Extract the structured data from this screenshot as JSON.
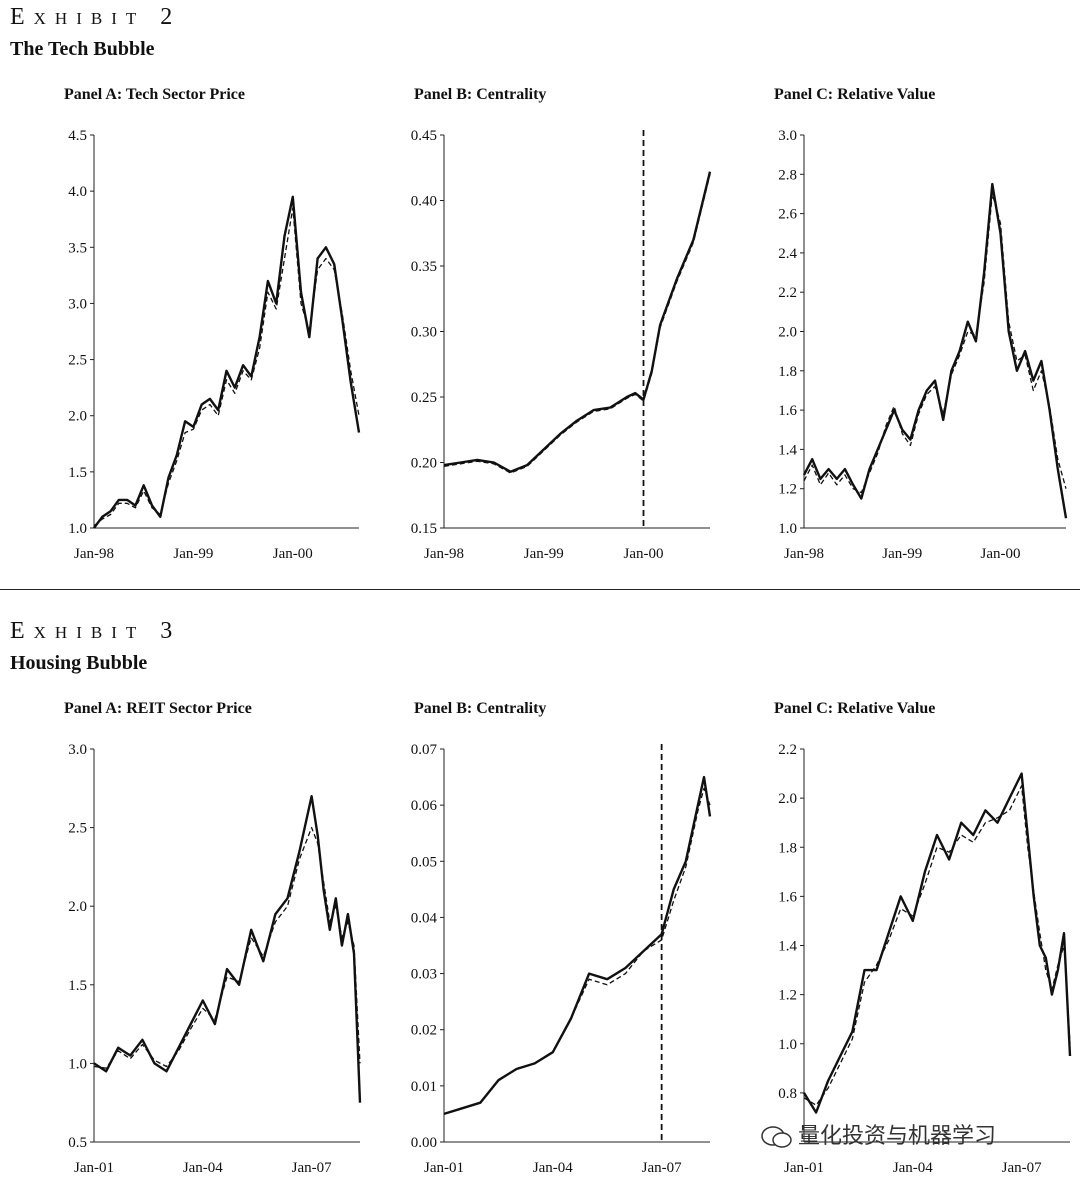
{
  "exhibits": [
    {
      "label": "Exhibit 2",
      "title": "The Tech Bubble"
    },
    {
      "label": "Exhibit 3",
      "title": "Housing Bubble"
    }
  ],
  "watermark": "量化投资与机器学习",
  "chart_data": [
    {
      "type": "line",
      "title": "Panel A: Tech Sector Price",
      "ylim": [
        1.0,
        4.5
      ],
      "yticks": [
        "1.0",
        "1.5",
        "2.0",
        "2.5",
        "3.0",
        "3.5",
        "4.0",
        "4.5"
      ],
      "xlim": [
        0,
        32
      ],
      "xticks": [
        {
          "x": 0,
          "label": "Jan-98"
        },
        {
          "x": 12,
          "label": "Jan-99"
        },
        {
          "x": 24,
          "label": "Jan-00"
        }
      ],
      "series": [
        {
          "style": "solid",
          "x": [
            0,
            1,
            2,
            3,
            4,
            5,
            6,
            7,
            8,
            9,
            10,
            11,
            12,
            13,
            14,
            15,
            16,
            17,
            18,
            19,
            20,
            21,
            22,
            23,
            24,
            25,
            26,
            27,
            28,
            29,
            30,
            31,
            32
          ],
          "values": [
            1.0,
            1.1,
            1.15,
            1.25,
            1.25,
            1.2,
            1.38,
            1.2,
            1.1,
            1.45,
            1.65,
            1.95,
            1.9,
            2.1,
            2.15,
            2.05,
            2.4,
            2.25,
            2.45,
            2.35,
            2.7,
            3.2,
            3.0,
            3.6,
            3.95,
            3.1,
            2.7,
            3.4,
            3.5,
            3.35,
            2.85,
            2.3,
            1.85
          ]
        },
        {
          "style": "dashed",
          "x": [
            0,
            1,
            2,
            3,
            4,
            5,
            6,
            7,
            8,
            9,
            10,
            11,
            12,
            13,
            14,
            15,
            16,
            17,
            18,
            19,
            20,
            21,
            22,
            23,
            24,
            25,
            26,
            27,
            28,
            29,
            30,
            31,
            32
          ],
          "values": [
            1.02,
            1.08,
            1.12,
            1.22,
            1.22,
            1.18,
            1.33,
            1.18,
            1.12,
            1.4,
            1.6,
            1.85,
            1.88,
            2.05,
            2.1,
            2.0,
            2.32,
            2.2,
            2.4,
            2.32,
            2.6,
            3.1,
            2.95,
            3.4,
            3.85,
            3.0,
            2.75,
            3.3,
            3.4,
            3.3,
            2.9,
            2.4,
            2.0
          ]
        }
      ]
    },
    {
      "type": "line",
      "title": "Panel B: Centrality",
      "ylim": [
        0.15,
        0.45
      ],
      "yticks": [
        "0.15",
        "0.20",
        "0.25",
        "0.30",
        "0.35",
        "0.40",
        "0.45"
      ],
      "xlim": [
        0,
        32
      ],
      "xticks": [
        {
          "x": 0,
          "label": "Jan-98"
        },
        {
          "x": 12,
          "label": "Jan-99"
        },
        {
          "x": 24,
          "label": "Jan-00"
        }
      ],
      "vline": 24,
      "series": [
        {
          "style": "solid",
          "x": [
            0,
            2,
            4,
            6,
            8,
            10,
            12,
            14,
            16,
            18,
            20,
            22,
            23,
            24,
            25,
            26,
            28,
            30,
            32
          ],
          "values": [
            0.198,
            0.2,
            0.202,
            0.2,
            0.193,
            0.198,
            0.21,
            0.222,
            0.232,
            0.24,
            0.242,
            0.25,
            0.253,
            0.248,
            0.27,
            0.305,
            0.34,
            0.37,
            0.422
          ]
        },
        {
          "style": "dashed",
          "x": [
            0,
            2,
            4,
            6,
            8,
            10,
            12,
            14,
            16,
            18,
            20,
            22,
            23,
            24,
            25,
            26,
            28,
            30,
            32
          ],
          "values": [
            0.197,
            0.199,
            0.201,
            0.199,
            0.192,
            0.197,
            0.209,
            0.221,
            0.231,
            0.239,
            0.241,
            0.249,
            0.252,
            0.247,
            0.268,
            0.303,
            0.338,
            0.368,
            0.42
          ]
        }
      ]
    },
    {
      "type": "line",
      "title": "Panel C: Relative Value",
      "ylim": [
        1.0,
        3.0
      ],
      "yticks": [
        "1.0",
        "1.2",
        "1.4",
        "1.6",
        "1.8",
        "2.0",
        "2.2",
        "2.4",
        "2.6",
        "2.8",
        "3.0"
      ],
      "xlim": [
        0,
        32
      ],
      "xticks": [
        {
          "x": 0,
          "label": "Jan-98"
        },
        {
          "x": 12,
          "label": "Jan-99"
        },
        {
          "x": 24,
          "label": "Jan-00"
        }
      ],
      "series": [
        {
          "style": "solid",
          "x": [
            0,
            1,
            2,
            3,
            4,
            5,
            6,
            7,
            8,
            9,
            10,
            11,
            12,
            13,
            14,
            15,
            16,
            17,
            18,
            19,
            20,
            21,
            22,
            23,
            24,
            25,
            26,
            27,
            28,
            29,
            30,
            31,
            32
          ],
          "values": [
            1.27,
            1.35,
            1.25,
            1.3,
            1.25,
            1.3,
            1.22,
            1.15,
            1.3,
            1.4,
            1.5,
            1.6,
            1.5,
            1.45,
            1.6,
            1.7,
            1.75,
            1.55,
            1.8,
            1.9,
            2.05,
            1.95,
            2.3,
            2.75,
            2.5,
            2.0,
            1.8,
            1.9,
            1.75,
            1.85,
            1.6,
            1.3,
            1.05
          ]
        },
        {
          "style": "dashed",
          "x": [
            0,
            1,
            2,
            3,
            4,
            5,
            6,
            7,
            8,
            9,
            10,
            11,
            12,
            13,
            14,
            15,
            16,
            17,
            18,
            19,
            20,
            21,
            22,
            23,
            24,
            25,
            26,
            27,
            28,
            29,
            30,
            31,
            32
          ],
          "values": [
            1.24,
            1.32,
            1.22,
            1.28,
            1.22,
            1.27,
            1.2,
            1.18,
            1.28,
            1.38,
            1.52,
            1.62,
            1.48,
            1.42,
            1.58,
            1.68,
            1.72,
            1.58,
            1.78,
            1.88,
            2.0,
            1.98,
            2.25,
            2.7,
            2.55,
            2.05,
            1.85,
            1.88,
            1.7,
            1.8,
            1.62,
            1.35,
            1.2
          ]
        }
      ]
    },
    {
      "type": "line",
      "title": "Panel A: REIT Sector Price",
      "ylim": [
        0.5,
        3.0
      ],
      "yticks": [
        "0.5",
        "1.0",
        "1.5",
        "2.0",
        "2.5",
        "3.0"
      ],
      "xlim": [
        0,
        88
      ],
      "xticks": [
        {
          "x": 0,
          "label": "Jan-01"
        },
        {
          "x": 36,
          "label": "Jan-04"
        },
        {
          "x": 72,
          "label": "Jan-07"
        }
      ],
      "series": [
        {
          "style": "solid",
          "x": [
            0,
            4,
            8,
            12,
            16,
            20,
            24,
            28,
            32,
            36,
            40,
            44,
            48,
            52,
            56,
            60,
            64,
            68,
            72,
            74,
            76,
            78,
            80,
            82,
            84,
            86,
            88
          ],
          "values": [
            1.0,
            0.95,
            1.1,
            1.05,
            1.15,
            1.0,
            0.95,
            1.1,
            1.25,
            1.4,
            1.25,
            1.6,
            1.5,
            1.85,
            1.65,
            1.95,
            2.05,
            2.35,
            2.7,
            2.45,
            2.1,
            1.85,
            2.05,
            1.75,
            1.95,
            1.7,
            0.75
          ]
        },
        {
          "style": "dashed",
          "x": [
            0,
            4,
            8,
            12,
            16,
            20,
            24,
            28,
            32,
            36,
            40,
            44,
            48,
            52,
            56,
            60,
            64,
            68,
            72,
            74,
            76,
            78,
            80,
            82,
            84,
            86,
            88
          ],
          "values": [
            0.98,
            0.97,
            1.08,
            1.03,
            1.12,
            1.02,
            0.98,
            1.08,
            1.22,
            1.35,
            1.28,
            1.55,
            1.52,
            1.8,
            1.68,
            1.9,
            2.0,
            2.3,
            2.5,
            2.4,
            2.15,
            1.9,
            2.0,
            1.8,
            1.9,
            1.75,
            1.0
          ]
        }
      ]
    },
    {
      "type": "line",
      "title": "Panel B: Centrality",
      "ylim": [
        0.0,
        0.07
      ],
      "yticks": [
        "0.00",
        "0.01",
        "0.02",
        "0.03",
        "0.04",
        "0.05",
        "0.06",
        "0.07"
      ],
      "xlim": [
        0,
        88
      ],
      "xticks": [
        {
          "x": 0,
          "label": "Jan-01"
        },
        {
          "x": 36,
          "label": "Jan-04"
        },
        {
          "x": 72,
          "label": "Jan-07"
        }
      ],
      "vline": 72,
      "series": [
        {
          "style": "solid",
          "x": [
            0,
            6,
            12,
            18,
            24,
            30,
            36,
            42,
            48,
            54,
            60,
            66,
            72,
            76,
            80,
            84,
            86,
            88
          ],
          "values": [
            0.005,
            0.006,
            0.007,
            0.011,
            0.013,
            0.014,
            0.016,
            0.022,
            0.03,
            0.029,
            0.031,
            0.034,
            0.037,
            0.045,
            0.05,
            0.06,
            0.065,
            0.058
          ]
        },
        {
          "style": "dashed",
          "x": [
            0,
            6,
            12,
            18,
            24,
            30,
            36,
            42,
            48,
            54,
            60,
            66,
            72,
            76,
            80,
            84,
            86,
            88
          ],
          "values": [
            0.005,
            0.006,
            0.007,
            0.011,
            0.013,
            0.014,
            0.016,
            0.022,
            0.029,
            0.028,
            0.03,
            0.034,
            0.036,
            0.043,
            0.049,
            0.059,
            0.063,
            0.06
          ]
        }
      ]
    },
    {
      "type": "line",
      "title": "Panel C: Relative Value",
      "ylim": [
        0.6,
        2.2
      ],
      "yticks": [
        "0.8",
        "1.0",
        "1.2",
        "1.4",
        "1.6",
        "1.8",
        "2.0",
        "2.2"
      ],
      "xlim": [
        0,
        88
      ],
      "xticks": [
        {
          "x": 0,
          "label": "Jan-01"
        },
        {
          "x": 36,
          "label": "Jan-04"
        },
        {
          "x": 72,
          "label": "Jan-07"
        }
      ],
      "series": [
        {
          "style": "solid",
          "x": [
            0,
            4,
            8,
            12,
            16,
            20,
            24,
            28,
            32,
            36,
            40,
            44,
            48,
            52,
            56,
            60,
            64,
            68,
            72,
            74,
            76,
            78,
            80,
            82,
            84,
            86,
            88
          ],
          "values": [
            0.8,
            0.72,
            0.85,
            0.95,
            1.05,
            1.3,
            1.3,
            1.45,
            1.6,
            1.5,
            1.7,
            1.85,
            1.75,
            1.9,
            1.85,
            1.95,
            1.9,
            2.0,
            2.1,
            1.85,
            1.6,
            1.4,
            1.35,
            1.2,
            1.3,
            1.45,
            0.95
          ]
        },
        {
          "style": "dashed",
          "x": [
            0,
            4,
            8,
            12,
            16,
            20,
            24,
            28,
            32,
            36,
            40,
            44,
            48,
            52,
            56,
            60,
            64,
            68,
            72,
            74,
            76,
            78,
            80,
            82,
            84,
            86,
            88
          ],
          "values": [
            0.78,
            0.75,
            0.82,
            0.92,
            1.02,
            1.25,
            1.32,
            1.42,
            1.55,
            1.52,
            1.65,
            1.8,
            1.78,
            1.85,
            1.82,
            1.9,
            1.92,
            1.95,
            2.05,
            1.8,
            1.62,
            1.45,
            1.3,
            1.22,
            1.32,
            1.4,
            1.0
          ]
        }
      ]
    }
  ]
}
